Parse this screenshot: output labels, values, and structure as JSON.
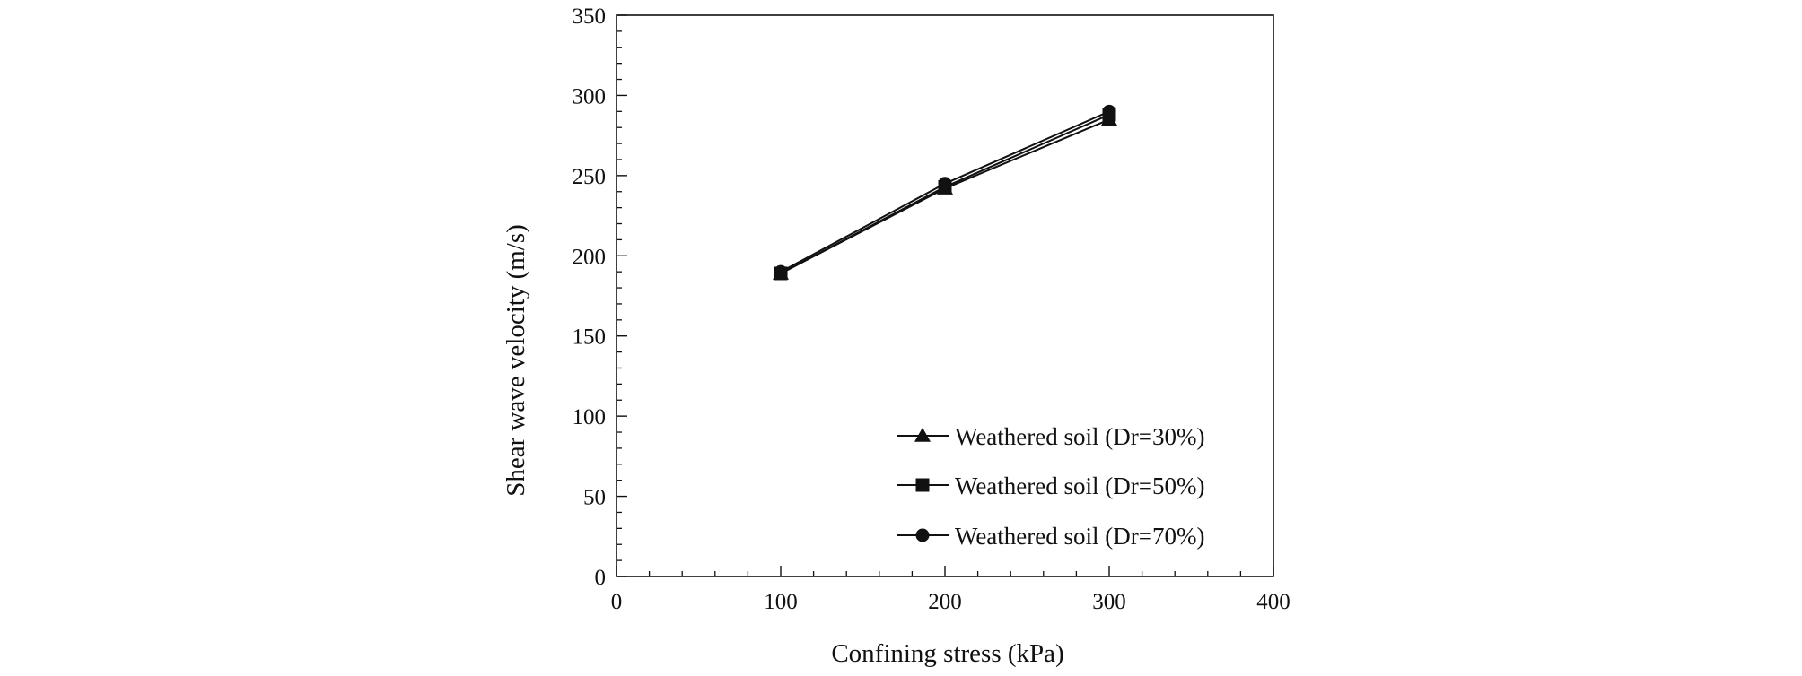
{
  "colors": {
    "line": "#111111",
    "marker": "#111111",
    "background": "#ffffff"
  },
  "chart_data": {
    "type": "line",
    "title": "",
    "xlabel": "Confining  stress (kPa)",
    "ylabel": "Shear wave velocity  (m/s)",
    "xlim": [
      0,
      400
    ],
    "ylim": [
      0,
      350
    ],
    "x_ticks": [
      0,
      100,
      200,
      300,
      400
    ],
    "y_ticks": [
      0,
      50,
      100,
      150,
      200,
      250,
      300,
      350
    ],
    "x_minor_step": 20,
    "y_minor_step": 10,
    "grid": false,
    "legend_position": "bottom-right",
    "x": [
      100,
      200,
      300
    ],
    "series": [
      {
        "name": "Weathered soil (Dr=30%)",
        "marker": "triangle",
        "values": [
          189,
          242,
          285
        ]
      },
      {
        "name": "Weathered soil (Dr=50%)",
        "marker": "square",
        "values": [
          189,
          243,
          288
        ]
      },
      {
        "name": "Weathered soil (Dr=70%)",
        "marker": "circle",
        "values": [
          190,
          245,
          290
        ]
      }
    ]
  }
}
